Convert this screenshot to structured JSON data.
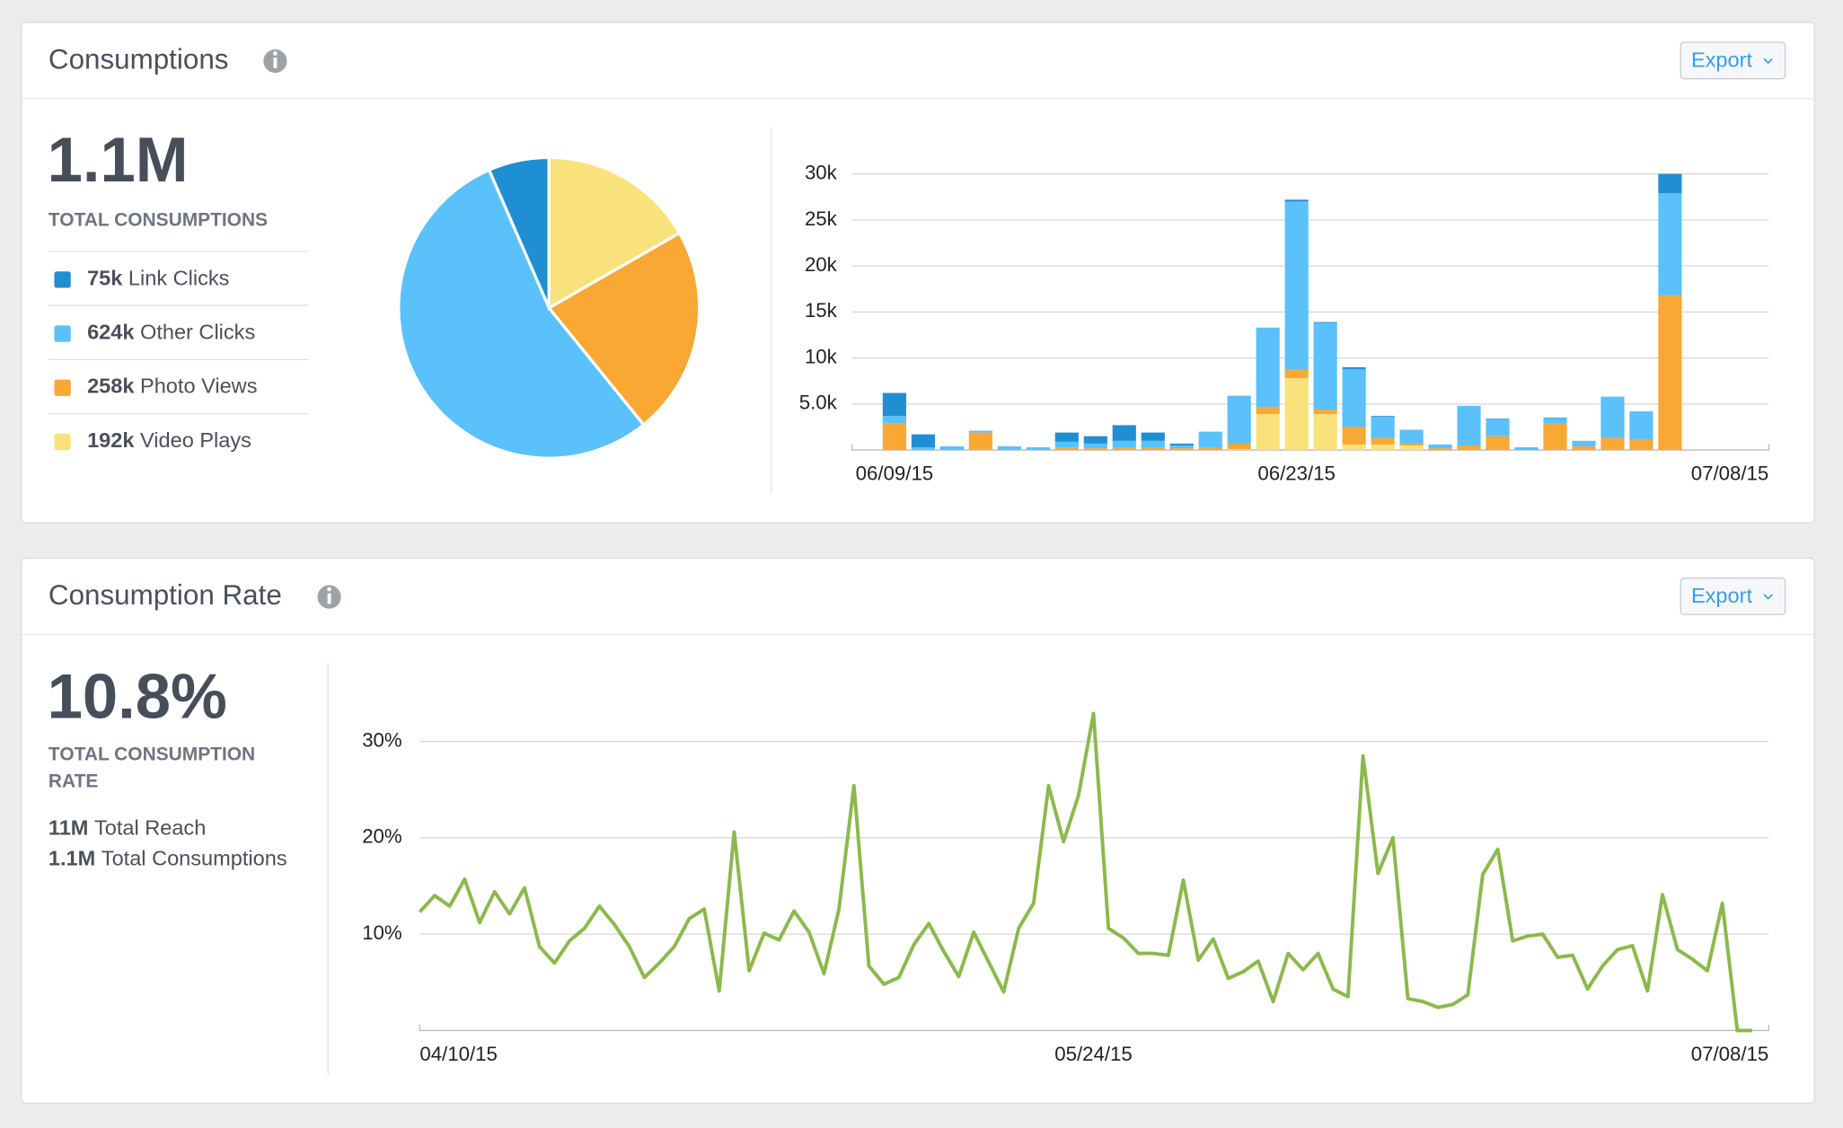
{
  "panels": [
    {
      "title": "Consumptions",
      "export": "Export",
      "total": "1.1M",
      "total_label": "TOTAL CONSUMPTIONS"
    },
    {
      "title": "Consumption Rate",
      "export": "Export",
      "total": "10.8%",
      "total_label": "TOTAL CONSUMPTION RATE",
      "stats": [
        {
          "value": "11M",
          "label": "Total Reach"
        },
        {
          "value": "1.1M",
          "label": "Total Consumptions"
        }
      ]
    }
  ],
  "chart_data": [
    {
      "type": "pie",
      "categories": [
        "Link Clicks",
        "Other Clicks",
        "Photo Views",
        "Video Plays"
      ],
      "values": [
        75000,
        624000,
        258000,
        192000
      ],
      "value_labels": [
        "75k",
        "624k",
        "258k",
        "192k"
      ],
      "colors": [
        "#1f8fd3",
        "#5ac1fb",
        "#f9a834",
        "#f9e27b"
      ]
    },
    {
      "type": "bar",
      "stacked": true,
      "categories": [
        "06/09/15",
        null,
        null,
        null,
        null,
        null,
        null,
        null,
        null,
        null,
        null,
        null,
        null,
        null,
        "06/23/15",
        null,
        null,
        null,
        null,
        null,
        null,
        null,
        null,
        null,
        null,
        null,
        null,
        "07/08/15"
      ],
      "series": [
        {
          "color": "#f9e27b",
          "values": [
            0,
            0,
            0,
            0,
            0,
            0,
            0,
            0,
            0,
            0,
            0,
            0,
            100,
            3900,
            7800,
            3900,
            600,
            600,
            500,
            0,
            0,
            0,
            0,
            0,
            0,
            0,
            0,
            0
          ]
        },
        {
          "color": "#f9a834",
          "values": [
            2900,
            0,
            0,
            1900,
            0,
            0,
            300,
            200,
            300,
            300,
            200,
            300,
            600,
            800,
            900,
            500,
            1900,
            700,
            200,
            200,
            500,
            1500,
            0,
            2900,
            400,
            1300,
            1100,
            16800
          ]
        },
        {
          "color": "#5ac1fb",
          "values": [
            800,
            300,
            400,
            200,
            400,
            300,
            600,
            500,
            700,
            700,
            300,
            1700,
            5200,
            8600,
            18300,
            9400,
            6300,
            2300,
            1500,
            400,
            4300,
            1800,
            300,
            500,
            600,
            4500,
            3100,
            11100
          ]
        },
        {
          "color": "#1f8fd3",
          "values": [
            2500,
            1400,
            0,
            0,
            0,
            0,
            1000,
            800,
            1700,
            900,
            200,
            0,
            0,
            0,
            200,
            100,
            200,
            100,
            0,
            0,
            0,
            100,
            0,
            100,
            0,
            0,
            0,
            2100
          ]
        }
      ],
      "ylim": [
        0,
        30000
      ],
      "yticks": [
        {
          "value": 5000,
          "label": "5.0k"
        },
        {
          "value": 10000,
          "label": "10k"
        },
        {
          "value": 15000,
          "label": "15k"
        },
        {
          "value": 20000,
          "label": "20k"
        },
        {
          "value": 25000,
          "label": "25k"
        },
        {
          "value": 30000,
          "label": "30k"
        }
      ],
      "grid": true
    },
    {
      "type": "line",
      "color": "#8bb94b",
      "categories": [
        "04/10/15",
        null,
        null,
        null,
        null,
        null,
        null,
        null,
        null,
        null,
        null,
        null,
        null,
        null,
        null,
        null,
        null,
        null,
        null,
        null,
        null,
        null,
        null,
        null,
        null,
        null,
        null,
        null,
        null,
        null,
        null,
        null,
        null,
        null,
        null,
        null,
        null,
        null,
        null,
        null,
        null,
        null,
        null,
        null,
        null,
        "05/24/15",
        null,
        null,
        null,
        null,
        null,
        null,
        null,
        null,
        null,
        null,
        null,
        null,
        null,
        null,
        null,
        null,
        null,
        null,
        null,
        null,
        null,
        null,
        null,
        null,
        null,
        null,
        null,
        null,
        null,
        null,
        null,
        null,
        null,
        null,
        null,
        null,
        null,
        null,
        null,
        null,
        null,
        null,
        null,
        "07/08/15"
      ],
      "values": [
        12.3,
        14.0,
        12.9,
        15.7,
        11.2,
        14.4,
        12.1,
        14.8,
        8.7,
        7.0,
        9.3,
        10.6,
        12.9,
        11.0,
        8.7,
        5.5,
        7.0,
        8.7,
        11.6,
        12.6,
        4.1,
        20.6,
        6.2,
        10.1,
        9.4,
        12.4,
        10.2,
        5.9,
        12.6,
        25.4,
        6.7,
        4.8,
        5.5,
        8.9,
        11.1,
        8.2,
        5.6,
        10.2,
        7.1,
        4.0,
        10.6,
        13.2,
        25.4,
        19.6,
        24.4,
        32.9,
        10.6,
        9.6,
        8.0,
        8.0,
        7.8,
        15.6,
        7.3,
        9.5,
        5.4,
        6.1,
        7.2,
        3.0,
        8.0,
        6.3,
        8.0,
        4.3,
        3.5,
        28.5,
        16.3,
        20.0,
        3.3,
        3.0,
        2.4,
        2.7,
        3.7,
        16.2,
        18.8,
        9.3,
        9.8,
        10.0,
        7.6,
        7.8,
        4.3,
        6.7,
        8.4,
        8.8,
        4.1,
        14.1,
        8.4,
        7.4,
        6.2,
        13.2,
        0,
        0
      ],
      "ylim": [
        0,
        33
      ],
      "yticks": [
        {
          "value": 10,
          "label": "10%"
        },
        {
          "value": 20,
          "label": "20%"
        },
        {
          "value": 30,
          "label": "30%"
        }
      ],
      "grid": true
    }
  ]
}
